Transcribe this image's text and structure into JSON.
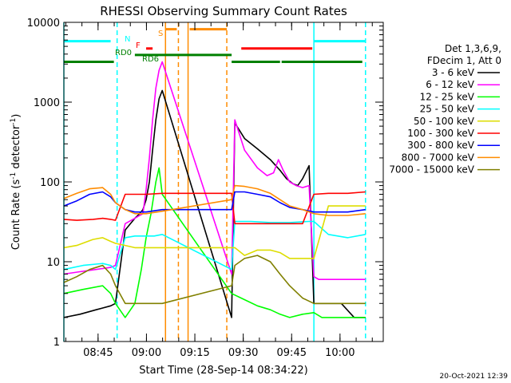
{
  "chart_data": {
    "type": "line",
    "title": "RHESSI Observing Summary Count Rates",
    "xlabel": "Start Time (28-Sep-14 08:34:22)",
    "ylabel_main": "Count Rate (s",
    "ylabel_sup1": "-1",
    "ylabel_mid": " detector",
    "ylabel_sup2": "-1",
    "ylabel_end": ")",
    "yscale": "log",
    "ylim": [
      1,
      10000
    ],
    "xlim_min": [
      0,
      99
    ],
    "x_ticks": [
      {
        "min": 10.6,
        "label": "08:45"
      },
      {
        "min": 25.6,
        "label": "09:00"
      },
      {
        "min": 40.6,
        "label": "09:15"
      },
      {
        "min": 55.6,
        "label": "09:30"
      },
      {
        "min": 70.6,
        "label": "09:45"
      },
      {
        "min": 85.6,
        "label": "10:00"
      }
    ],
    "y_ticks": [
      {
        "v": 1,
        "label": "1"
      },
      {
        "v": 10,
        "label": "10"
      },
      {
        "v": 100,
        "label": "100"
      },
      {
        "v": 1000,
        "label": "1000"
      },
      {
        "v": 10000,
        "label": "10000"
      }
    ],
    "legend_header": [
      "Det 1,3,6,9,",
      "FDecim 1, Att 0"
    ],
    "series": [
      {
        "name": "3 - 6 keV",
        "color": "#000000",
        "x": [
          0,
          5,
          10,
          14.5,
          16,
          19,
          22,
          23.5,
          24.5,
          25.5,
          26.5,
          27.5,
          28.5,
          29.5,
          30.5,
          52,
          53,
          56,
          60,
          64,
          67,
          69,
          71,
          72.5,
          74,
          76,
          77.5,
          79,
          82,
          86,
          90,
          93.5
        ],
        "y": [
          2,
          2.2,
          2.5,
          2.8,
          3,
          25,
          35,
          40,
          45,
          60,
          100,
          250,
          600,
          1100,
          1400,
          2,
          550,
          350,
          260,
          190,
          140,
          110,
          95,
          90,
          110,
          160,
          3,
          3,
          3,
          3,
          2,
          2
        ]
      },
      {
        "name": "6 - 12 keV",
        "color": "#ff00ff",
        "x": [
          0,
          5,
          10,
          14.5,
          16,
          19,
          22,
          23.5,
          24.5,
          25.5,
          26.5,
          27.5,
          28.5,
          29.5,
          30.5,
          52,
          53,
          56,
          60,
          63,
          65,
          66.5,
          68,
          70,
          72,
          74,
          76,
          77.5,
          79,
          82,
          86,
          90,
          93.5
        ],
        "y": [
          7,
          7.5,
          8,
          8.5,
          9,
          30,
          35,
          38,
          40,
          80,
          200,
          600,
          1500,
          2500,
          3200,
          7,
          600,
          250,
          150,
          120,
          130,
          190,
          140,
          100,
          90,
          85,
          90,
          6.5,
          6,
          6,
          6,
          6,
          6
        ]
      },
      {
        "name": "12 - 25 keV",
        "color": "#00ff00",
        "x": [
          0,
          6,
          12,
          14.5,
          16,
          19,
          22,
          24,
          25.5,
          27,
          28.5,
          29.5,
          30.5,
          52,
          55,
          60,
          64,
          67,
          70,
          74,
          77.5,
          80,
          86,
          93.5
        ],
        "y": [
          4,
          4.5,
          5,
          4,
          3,
          2,
          3,
          8,
          20,
          40,
          100,
          150,
          70,
          4,
          3.5,
          2.8,
          2.5,
          2.2,
          2,
          2.2,
          2.3,
          2,
          2,
          2
        ]
      },
      {
        "name": "25 - 50 keV",
        "color": "#00ffff",
        "x": [
          0,
          6,
          12,
          14.5,
          16,
          19,
          22,
          25.5,
          28,
          30.5,
          52,
          53,
          58,
          64,
          70,
          76,
          77.5,
          82,
          88,
          93.5
        ],
        "y": [
          8,
          9,
          9.5,
          9,
          8,
          20,
          21,
          21,
          21,
          22,
          8,
          32,
          32,
          31,
          31,
          32,
          32,
          22,
          20,
          22
        ]
      },
      {
        "name": "50 - 100 keV",
        "color": "#dddd00",
        "x": [
          0,
          4,
          9,
          12,
          14.5,
          16,
          19,
          22,
          24,
          26,
          28,
          30.5,
          52,
          53,
          56,
          60,
          64,
          67,
          70,
          74,
          77.5,
          82,
          88,
          93.5
        ],
        "y": [
          15,
          16,
          19,
          20,
          18,
          17,
          16,
          15,
          15,
          15,
          15,
          15,
          15,
          15,
          12,
          14,
          14,
          13,
          11,
          11,
          11,
          50,
          50,
          50
        ]
      },
      {
        "name": "100 - 300 keV",
        "color": "#ff0000",
        "x": [
          0,
          4,
          9,
          12,
          14.5,
          16,
          19,
          22,
          25.5,
          30.5,
          52,
          53,
          58,
          64,
          67,
          70,
          74,
          77.5,
          82,
          88,
          93.5
        ],
        "y": [
          34,
          33,
          34,
          35,
          34,
          33,
          70,
          70,
          70,
          72,
          72,
          30,
          30,
          30,
          30,
          30,
          30,
          70,
          72,
          72,
          75
        ]
      },
      {
        "name": "300 - 800 keV",
        "color": "#0000ff",
        "x": [
          0,
          4,
          8,
          12,
          14.5,
          16,
          19,
          22,
          25.5,
          30.5,
          52,
          53,
          56,
          60,
          64,
          67,
          70,
          74,
          77.5,
          82,
          88,
          93.5
        ],
        "y": [
          50,
          58,
          70,
          75,
          65,
          55,
          45,
          42,
          42,
          45,
          45,
          75,
          75,
          70,
          65,
          55,
          48,
          45,
          42,
          42,
          42,
          45
        ]
      },
      {
        "name": "800 - 7000 keV",
        "color": "#ff8c00",
        "x": [
          0,
          4,
          8,
          12,
          14.5,
          16,
          19,
          22,
          25.5,
          30.5,
          52,
          53,
          56,
          60,
          64,
          67,
          70,
          74,
          77.5,
          82,
          88,
          93.5
        ],
        "y": [
          62,
          72,
          82,
          85,
          70,
          55,
          45,
          40,
          40,
          43,
          60,
          90,
          88,
          82,
          72,
          60,
          50,
          45,
          40,
          38,
          38,
          40
        ]
      },
      {
        "name": "7000 - 15000 keV",
        "color": "#808000",
        "x": [
          0,
          4,
          8,
          12,
          14.5,
          16,
          19,
          22,
          25.5,
          30.5,
          52,
          53,
          56,
          60,
          64,
          67,
          70,
          74,
          77.5,
          82,
          88,
          93.5
        ],
        "y": [
          5.5,
          6.5,
          8,
          9,
          7,
          5,
          3,
          3,
          3,
          3,
          5,
          9,
          11,
          12,
          10,
          7,
          5,
          3.5,
          3,
          3,
          3,
          3
        ]
      }
    ],
    "annotations": {
      "night_label": "N",
      "saa_label": "S",
      "flare_label": "F",
      "decim_label": "RD0",
      "decim_label2": "RD6"
    },
    "bars": {
      "N": {
        "color": "#00ffff",
        "y": 5800,
        "segments": [
          [
            0,
            14.5
          ],
          [
            77.5,
            93.5
          ]
        ]
      },
      "S": {
        "color": "#ff8c00",
        "y": 8200,
        "segments": [
          [
            31.5,
            35
          ],
          [
            39,
            50.5
          ]
        ]
      },
      "F": {
        "color": "#ff0000",
        "y": 4700,
        "segments": [
          [
            25.5,
            27.5
          ],
          [
            55,
            77
          ]
        ]
      },
      "RD0": {
        "color": "#008000",
        "y": 3900,
        "segments": [
          [
            22,
            52
          ]
        ]
      },
      "RD6": {
        "color": "#008000",
        "y": 3200,
        "segments": [
          [
            0,
            15.5
          ],
          [
            52,
            67
          ],
          [
            67.5,
            92.5
          ]
        ]
      }
    },
    "vlines": [
      {
        "min": 0,
        "color": "#00ffff",
        "dash": false
      },
      {
        "min": 16.5,
        "color": "#00ffff",
        "dash": true
      },
      {
        "min": 31.5,
        "color": "#ff8c00",
        "dash": false
      },
      {
        "min": 35.5,
        "color": "#ff8c00",
        "dash": true
      },
      {
        "min": 38.5,
        "color": "#ff8c00",
        "dash": false
      },
      {
        "min": 50.5,
        "color": "#ff8c00",
        "dash": true
      },
      {
        "min": 77.5,
        "color": "#00ffff",
        "dash": false
      },
      {
        "min": 93.5,
        "color": "#00ffff",
        "dash": true
      }
    ]
  },
  "footer": {
    "timestamp": "20-Oct-2021 12:39"
  }
}
